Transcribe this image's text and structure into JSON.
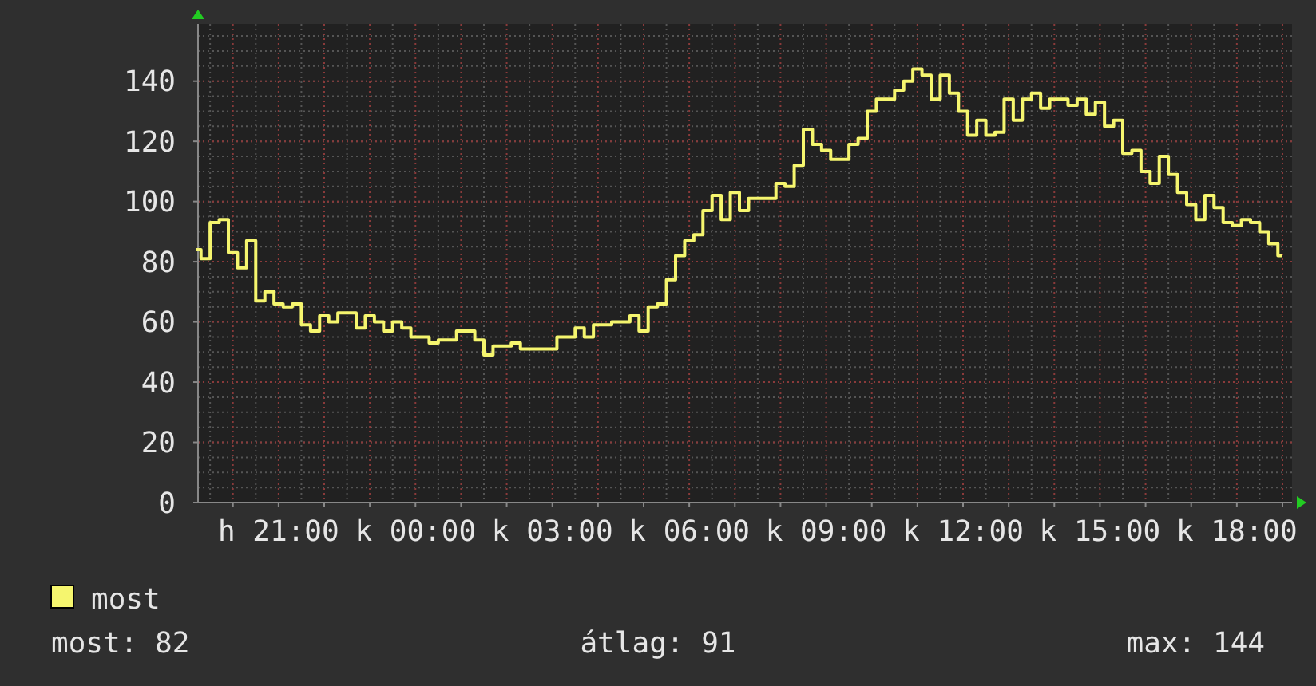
{
  "chart_data": {
    "type": "step",
    "ylim": [
      0,
      159
    ],
    "categories": [
      null,
      null,
      null,
      null,
      null,
      null,
      null,
      null,
      null,
      "h 21:00",
      null,
      null,
      null,
      null,
      null,
      null,
      null,
      null,
      null,
      null,
      null,
      null,
      null,
      null,
      "k 00:00",
      null,
      null,
      null,
      null,
      null,
      null,
      null,
      null,
      null,
      null,
      null,
      null,
      null,
      null,
      "k 03:00",
      null,
      null,
      null,
      null,
      null,
      null,
      null,
      null,
      null,
      null,
      null,
      null,
      null,
      null,
      "k 06:00",
      null,
      null,
      null,
      null,
      null,
      null,
      null,
      null,
      null,
      null,
      null,
      null,
      null,
      null,
      "k 09:00",
      null,
      null,
      null,
      null,
      null,
      null,
      null,
      null,
      null,
      null,
      null,
      null,
      null,
      null,
      "k 12:00",
      null,
      null,
      null,
      null,
      null,
      null,
      null,
      null,
      null,
      null,
      null,
      null,
      null,
      null,
      "k 15:00",
      null,
      null,
      null,
      null,
      null,
      null,
      null,
      null,
      null,
      null,
      null,
      null,
      null,
      null,
      "k 18:00",
      null,
      null,
      null,
      null,
      null
    ],
    "yticks": [
      0,
      20,
      40,
      60,
      80,
      100,
      120,
      140
    ],
    "grid": true,
    "legend": "bottom left",
    "annotations": [
      "most: 82",
      "átlag: 91",
      "max: 144"
    ],
    "series": [
      {
        "name": "most",
        "color": "#f5f56e",
        "values": [
          84,
          81,
          93,
          94,
          83,
          78,
          87,
          67,
          70,
          66,
          65,
          66,
          59,
          57,
          62,
          60,
          63,
          63,
          58,
          62,
          60,
          57,
          60,
          58,
          55,
          55,
          53,
          54,
          54,
          57,
          57,
          54,
          49,
          52,
          52,
          53,
          51,
          51,
          51,
          51,
          55,
          55,
          58,
          55,
          59,
          59,
          60,
          60,
          62,
          57,
          65,
          66,
          74,
          82,
          87,
          89,
          97,
          102,
          94,
          103,
          97,
          101,
          101,
          101,
          106,
          105,
          112,
          124,
          119,
          117,
          114,
          114,
          119,
          121,
          130,
          134,
          134,
          137,
          140,
          144,
          142,
          134,
          142,
          136,
          130,
          122,
          127,
          122,
          123,
          134,
          127,
          134,
          136,
          131,
          134,
          134,
          132,
          134,
          129,
          133,
          125,
          127,
          116,
          117,
          110,
          106,
          115,
          109,
          103,
          99,
          94,
          102,
          98,
          93,
          92,
          94,
          93,
          90,
          86,
          82
        ]
      }
    ]
  }
}
